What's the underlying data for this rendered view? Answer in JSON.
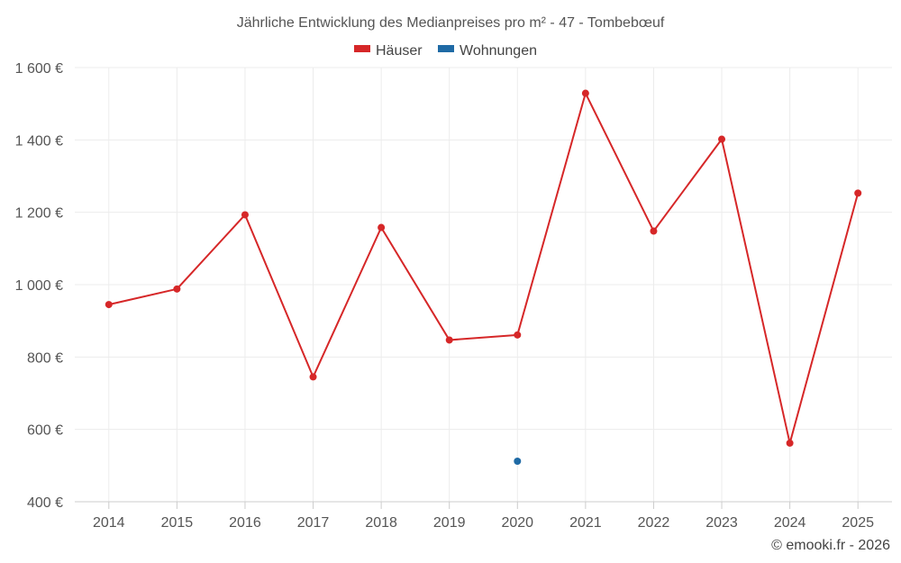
{
  "chart_data": {
    "type": "line",
    "title": "Jährliche Entwicklung des Medianpreises pro m² - 47 - Tombebœuf",
    "categories": [
      "2014",
      "2015",
      "2016",
      "2017",
      "2018",
      "2019",
      "2020",
      "2021",
      "2022",
      "2023",
      "2024",
      "2025"
    ],
    "ylim": [
      400,
      1600
    ],
    "yticks": [
      400,
      600,
      800,
      1000,
      1200,
      1400,
      1600
    ],
    "ytick_labels": [
      "400 €",
      "600 €",
      "800 €",
      "1 000 €",
      "1 200 €",
      "1 400 €",
      "1 600 €"
    ],
    "grid": true,
    "legend_position": "top-center",
    "series": [
      {
        "name": "Häuser",
        "color": "#d62728",
        "values": [
          945,
          988,
          1193,
          745,
          1158,
          847,
          861,
          1529,
          1148,
          1402,
          562,
          1253
        ]
      },
      {
        "name": "Wohnungen",
        "color": "#1f6aa5",
        "values": [
          null,
          null,
          null,
          null,
          null,
          null,
          512,
          null,
          null,
          null,
          null,
          null
        ]
      }
    ],
    "footer": "© emooki.fr - 2026"
  }
}
